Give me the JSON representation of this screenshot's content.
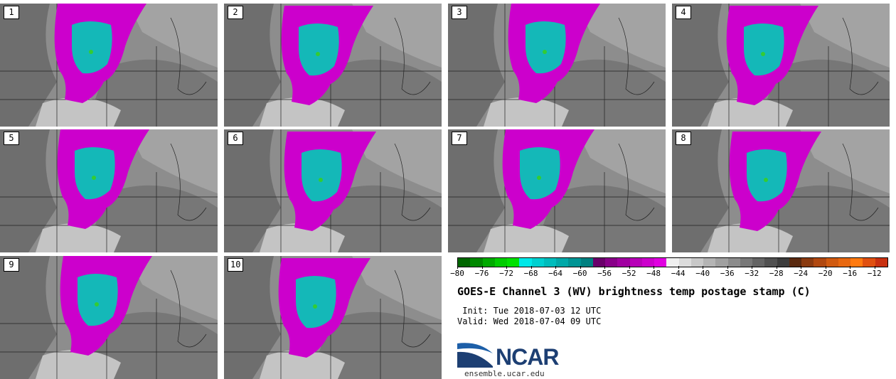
{
  "panels": [
    {
      "label": "1"
    },
    {
      "label": "2"
    },
    {
      "label": "3"
    },
    {
      "label": "4"
    },
    {
      "label": "5"
    },
    {
      "label": "6"
    },
    {
      "label": "7"
    },
    {
      "label": "8"
    },
    {
      "label": "9"
    },
    {
      "label": "10"
    }
  ],
  "colorbar": {
    "colors": [
      "#006600",
      "#008800",
      "#00aa00",
      "#00cc00",
      "#00e000",
      "#00e8e8",
      "#00d0d0",
      "#00bcbc",
      "#00a8a8",
      "#009494",
      "#008080",
      "#6a006a",
      "#880088",
      "#a000a0",
      "#b800b8",
      "#cc00cc",
      "#e000e0",
      "#f0f0f0",
      "#dcdcdc",
      "#c8c8c8",
      "#b4b4b4",
      "#a0a0a0",
      "#8c8c8c",
      "#787878",
      "#646464",
      "#505050",
      "#3c3c3c",
      "#5a2a10",
      "#8a3a10",
      "#b04810",
      "#d05a10",
      "#e86810",
      "#ff7a10",
      "#e05010",
      "#c83010"
    ],
    "ticks": [
      "−80",
      "−76",
      "−72",
      "−68",
      "−64",
      "−60",
      "−56",
      "−52",
      "−48",
      "−44",
      "−40",
      "−36",
      "−32",
      "−28",
      "−24",
      "−20",
      "−16",
      "−12"
    ]
  },
  "title": "GOES-E Channel 3 (WV) brightness temp postage stamp (C)",
  "init_line": " Init: Tue 2018-07-03 12 UTC",
  "valid_line": "Valid: Wed 2018-07-04 09 UTC",
  "logo_text": "NCAR",
  "site": "ensemble.ucar.edu",
  "colors": {
    "magenta": "#cc00cc",
    "cyan": "#14b8b8",
    "green": "#33cc33"
  }
}
